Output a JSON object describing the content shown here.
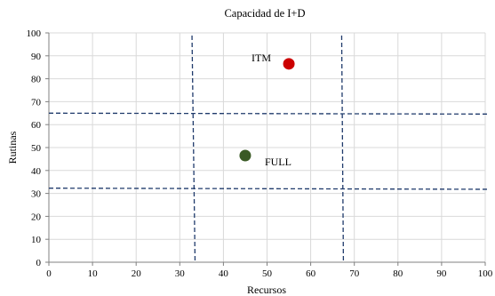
{
  "chart_data": {
    "type": "scatter",
    "title": "Capacidad de I+D",
    "xlabel": "Recursos",
    "ylabel": "Rutinas",
    "xlim": [
      0,
      100
    ],
    "ylim": [
      0,
      100
    ],
    "xticks": [
      0,
      10,
      20,
      30,
      40,
      50,
      60,
      70,
      80,
      90,
      100
    ],
    "yticks": [
      0,
      10,
      20,
      30,
      40,
      50,
      60,
      70,
      80,
      90,
      100
    ],
    "grid": true,
    "series": [
      {
        "label": "ITM",
        "x": 55,
        "y": 86.5,
        "color": "#cc0000"
      },
      {
        "label": "FULL",
        "x": 45,
        "y": 46.5,
        "color": "#3a5a25"
      }
    ],
    "reference_lines": {
      "vertical": [
        {
          "x_bottom": 33.5,
          "x_top": 32.8
        },
        {
          "x_bottom": 67.5,
          "x_top": 67.1
        }
      ],
      "horizontal": [
        {
          "y_left": 65.0,
          "y_right": 64.6
        },
        {
          "y_left": 32.3,
          "y_right": 31.8
        }
      ],
      "color": "#1f3a6b"
    },
    "grid_color": "#d9d9d9",
    "axis_color": "#808080"
  }
}
